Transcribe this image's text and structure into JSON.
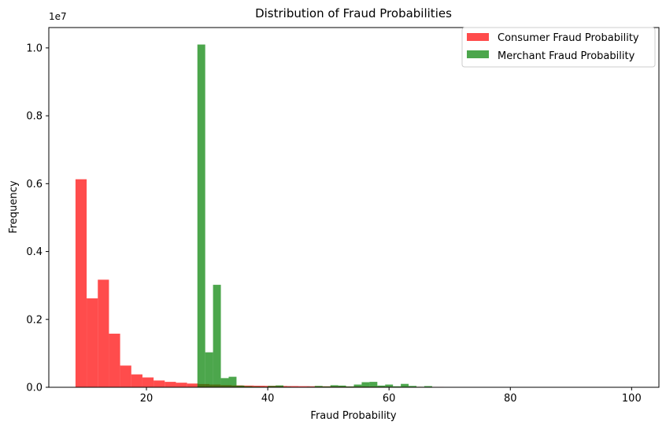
{
  "chart_data": {
    "type": "bar",
    "title": "Distribution of Fraud Probabilities",
    "xlabel": "Fraud Probability",
    "ylabel": "Frequency",
    "y_offset_label": "1e7",
    "xlim": [
      3.9,
      104.5
    ],
    "ylim": [
      0,
      10600000
    ],
    "xticks": [
      20,
      40,
      60,
      80,
      100
    ],
    "xtick_labels": [
      "20",
      "40",
      "60",
      "80",
      "100"
    ],
    "yticks": [
      0,
      2000000,
      4000000,
      6000000,
      8000000,
      10000000
    ],
    "ytick_labels": [
      "0.0",
      "0.2",
      "0.4",
      "0.6",
      "0.8",
      "1.0"
    ],
    "grid": false,
    "legend_position": "top-right",
    "series": [
      {
        "name": "Consumer Fraud Probability",
        "color": "#ff0000",
        "opacity": 0.7,
        "bin_start": 8.3,
        "bin_width": 1.84,
        "values": [
          6130000,
          2620000,
          3170000,
          1580000,
          640000,
          380000,
          290000,
          200000,
          160000,
          135000,
          110000,
          95000,
          80000,
          65000,
          55000,
          50000,
          45000,
          42000,
          38000,
          35000,
          32000,
          30000,
          28000,
          26000,
          24000,
          22000,
          20000,
          18000,
          16000,
          15000,
          14000,
          13000,
          12000,
          11000,
          10000,
          9000,
          8000,
          7000,
          6000,
          5000,
          4000
        ]
      },
      {
        "name": "Merchant Fraud Probability",
        "color": "#008000",
        "opacity": 0.7,
        "bin_start": 28.4,
        "bin_width": 1.29,
        "values": [
          10100000,
          1030000,
          3020000,
          270000,
          310000,
          50000,
          30000,
          20000,
          15000,
          40000,
          55000,
          15000,
          10000,
          10000,
          15000,
          40000,
          25000,
          60000,
          50000,
          25000,
          80000,
          150000,
          160000,
          50000,
          80000,
          30000,
          100000,
          40000,
          15000,
          35000,
          10000,
          5000,
          5000,
          5000,
          3000,
          3000
        ]
      }
    ]
  }
}
